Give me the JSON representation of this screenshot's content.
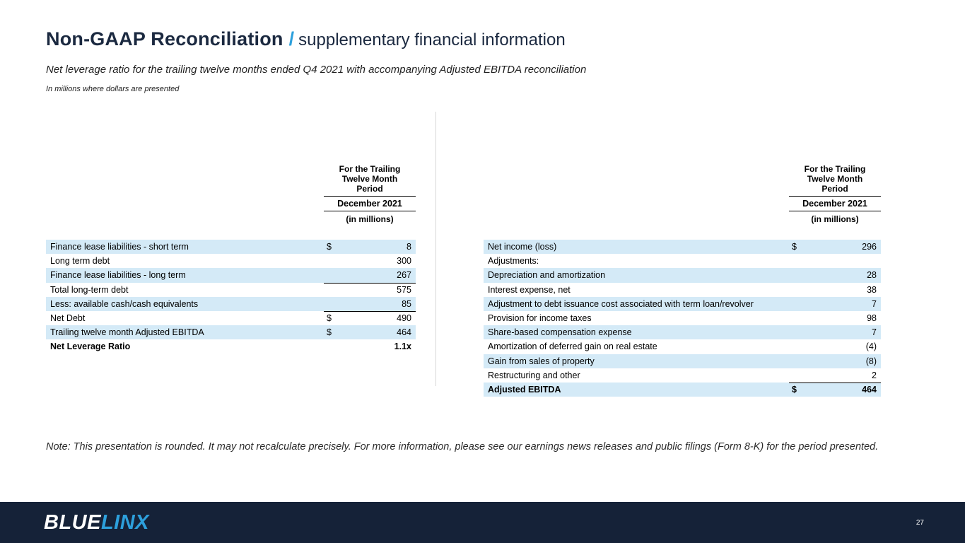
{
  "header": {
    "title_main": "Non-GAAP Reconciliation",
    "title_separator": "/",
    "title_secondary": "supplementary financial information",
    "subtitle": "Net leverage ratio for the trailing twelve months ended Q4 2021 with accompanying Adjusted EBITDA reconciliation",
    "units_note": "In millions where dollars are presented"
  },
  "column_header": {
    "period_label": "For the Trailing\nTwelve Month\nPeriod",
    "date_label": "December 2021",
    "units_label": "(in millions)"
  },
  "left_table": {
    "rows": [
      {
        "label": "Finance lease liabilities - short term",
        "dollar": "$",
        "value": "8",
        "shaded": true
      },
      {
        "label": "Long term debt",
        "dollar": "",
        "value": "300"
      },
      {
        "label": "Finance lease liabilities - long term",
        "dollar": "",
        "value": "267",
        "shaded": true,
        "rule": true
      },
      {
        "label": "Total long-term debt",
        "dollar": "",
        "value": "575"
      },
      {
        "label": "Less: available cash/cash equivalents",
        "dollar": "",
        "value": "85",
        "shaded": true,
        "rule": true
      },
      {
        "label": "Net Debt",
        "dollar": "$",
        "value": "490"
      },
      {
        "label": "Trailing twelve month Adjusted EBITDA",
        "dollar": "$",
        "value": "464",
        "shaded": true
      },
      {
        "label": "Net Leverage Ratio",
        "dollar": "",
        "value": "1.1x",
        "bold": true
      }
    ]
  },
  "right_table": {
    "rows": [
      {
        "label": "Net income (loss)",
        "dollar": "$",
        "value": "296",
        "shaded": true
      },
      {
        "label": "Adjustments:",
        "dollar": "",
        "value": ""
      },
      {
        "label": "Depreciation and amortization",
        "dollar": "",
        "value": "28",
        "shaded": true
      },
      {
        "label": "Interest expense, net",
        "dollar": "",
        "value": "38"
      },
      {
        "label": "Adjustment to debt issuance cost associated with term loan/revolver",
        "dollar": "",
        "value": "7",
        "shaded": true
      },
      {
        "label": "Provision for income taxes",
        "dollar": "",
        "value": "98"
      },
      {
        "label": "Share-based compensation expense",
        "dollar": "",
        "value": "7",
        "shaded": true
      },
      {
        "label": "Amortization of deferred gain on real estate",
        "dollar": "",
        "value": "(4)"
      },
      {
        "label": "Gain from sales of property",
        "dollar": "",
        "value": "(8)",
        "shaded": true
      },
      {
        "label": "Restructuring and other",
        "dollar": "",
        "value": "2",
        "rule": true
      },
      {
        "label": "Adjusted EBITDA",
        "dollar": "$",
        "value": "464",
        "shaded": true,
        "bold": true
      }
    ]
  },
  "footnote": "Note: This presentation is rounded. It may not recalculate precisely. For more information, please see our earnings news releases and public filings (Form 8-K) for the period presented.",
  "footer": {
    "logo_blue": "BLUE",
    "logo_linx": "LINX",
    "page_number": "27"
  },
  "colors": {
    "accent_blue": "#2da0dc",
    "row_shade": "#d4eaf7",
    "footer_bg": "#152238",
    "title_navy": "#1b2940"
  }
}
